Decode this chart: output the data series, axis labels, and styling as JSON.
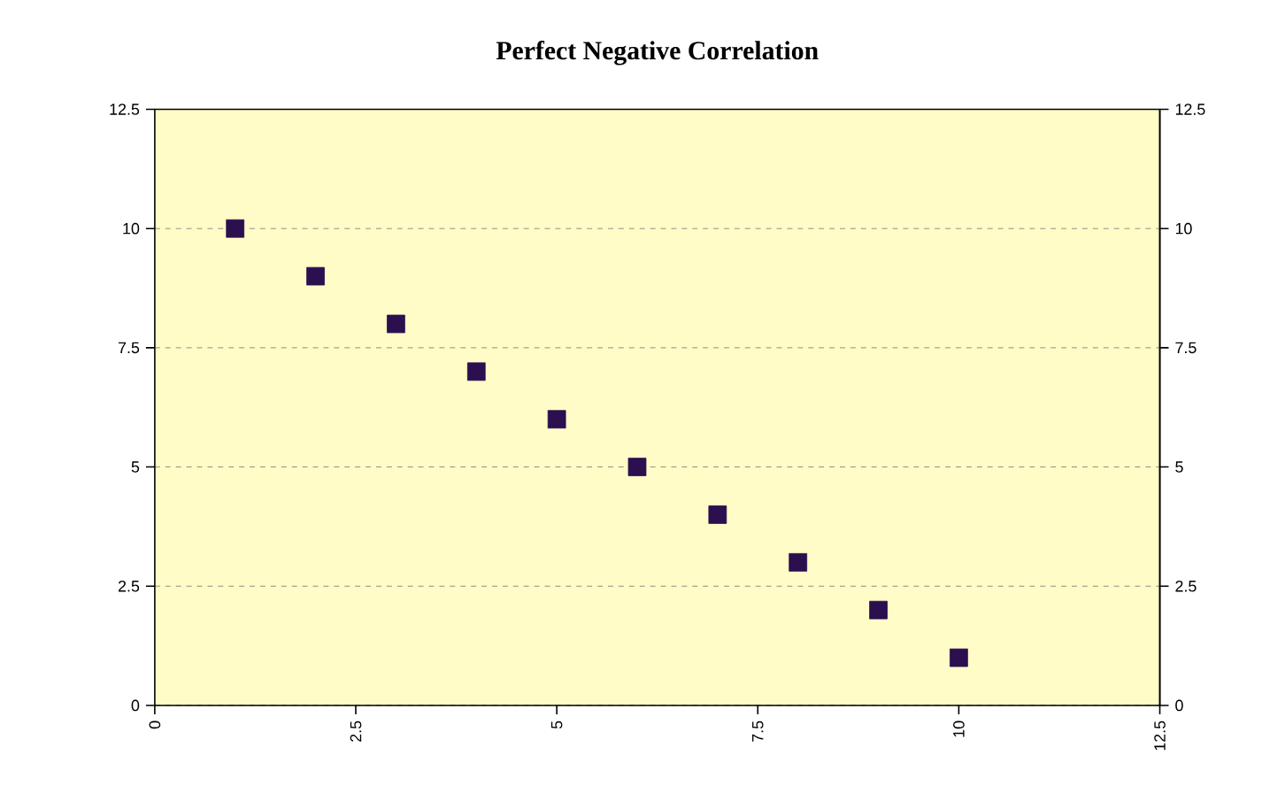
{
  "chart_data": {
    "type": "scatter",
    "title": "Perfect Negative Correlation",
    "x": [
      1,
      2,
      3,
      4,
      5,
      6,
      7,
      8,
      9,
      10
    ],
    "series": [
      {
        "color": "#2b0f4f",
        "values": [
          10,
          9,
          8,
          7,
          6,
          5,
          4,
          3,
          2,
          1
        ]
      }
    ],
    "xlim": [
      0,
      12.5
    ],
    "xticks": [
      0,
      2.5,
      5,
      7.5,
      10,
      12.5
    ],
    "ylim": [
      0,
      12.5
    ],
    "yticks": [
      0,
      2.5,
      5,
      7.5,
      10,
      12.5
    ],
    "y2lim": [
      0,
      12.5
    ],
    "y2ticks": [
      0,
      2.5,
      5,
      7.5,
      10,
      12.5
    ],
    "grid": "y",
    "marker": "square"
  }
}
